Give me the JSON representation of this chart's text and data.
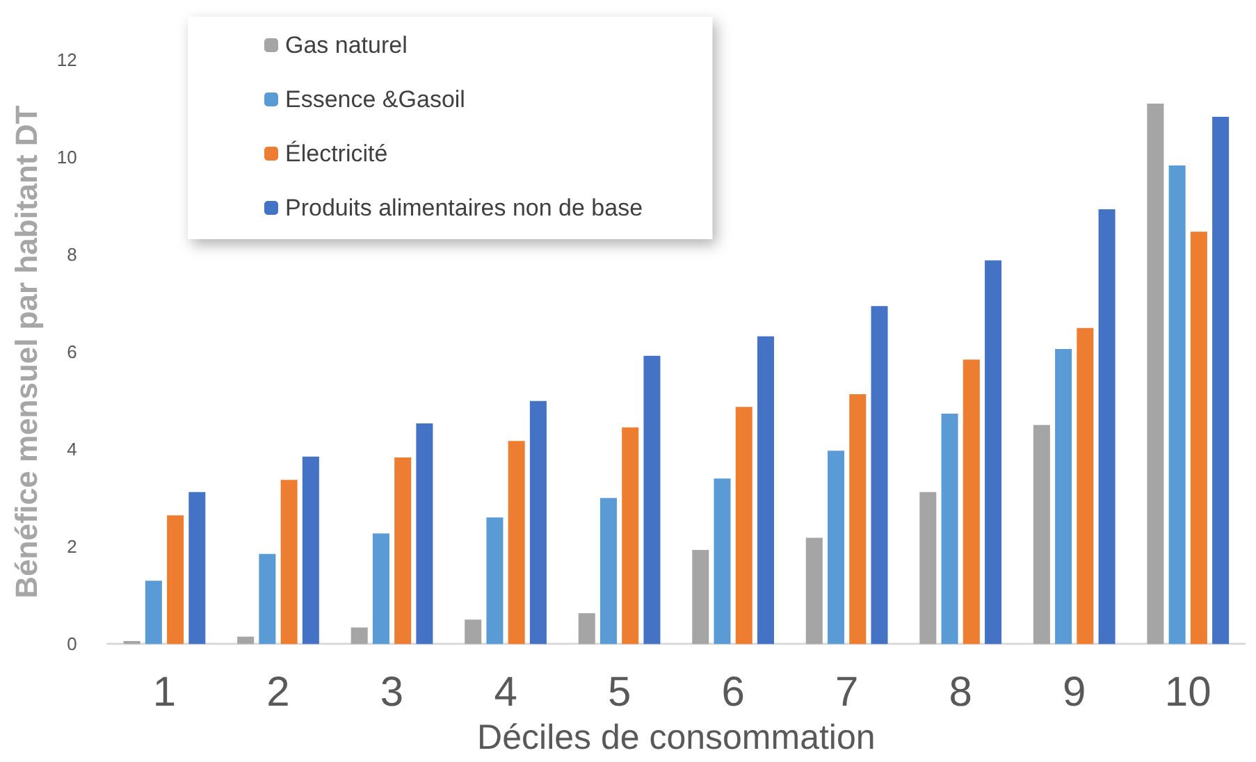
{
  "chart_data": {
    "type": "bar",
    "xlabel": "Déciles de consommation",
    "ylabel": "Bénéfice mensuel par habitant DT",
    "categories": [
      "1",
      "2",
      "3",
      "4",
      "5",
      "6",
      "7",
      "8",
      "9",
      "10"
    ],
    "series": [
      {
        "name": "Gas naturel",
        "color": "#a5a5a5",
        "values": [
          0.06,
          0.15,
          0.34,
          0.5,
          0.63,
          1.93,
          2.18,
          3.12,
          4.5,
          11.1
        ]
      },
      {
        "name": "Essence &Gasoil",
        "color": "#5b9bd5",
        "values": [
          1.3,
          1.85,
          2.27,
          2.6,
          3.0,
          3.4,
          3.97,
          4.73,
          6.06,
          9.83
        ]
      },
      {
        "name": "Électricité",
        "color": "#ed7d31",
        "values": [
          2.64,
          3.37,
          3.83,
          4.17,
          4.45,
          4.87,
          5.13,
          5.84,
          6.49,
          8.47
        ]
      },
      {
        "name": "Produits alimentaires non de base",
        "color": "#4472c4",
        "values": [
          3.12,
          3.85,
          4.53,
          4.99,
          5.92,
          6.32,
          6.94,
          7.88,
          8.93,
          10.83
        ]
      }
    ],
    "ylim": [
      0,
      12
    ],
    "yticks": [
      0,
      2,
      4,
      6,
      8,
      10,
      12
    ],
    "grid": false,
    "legend": "top left"
  }
}
